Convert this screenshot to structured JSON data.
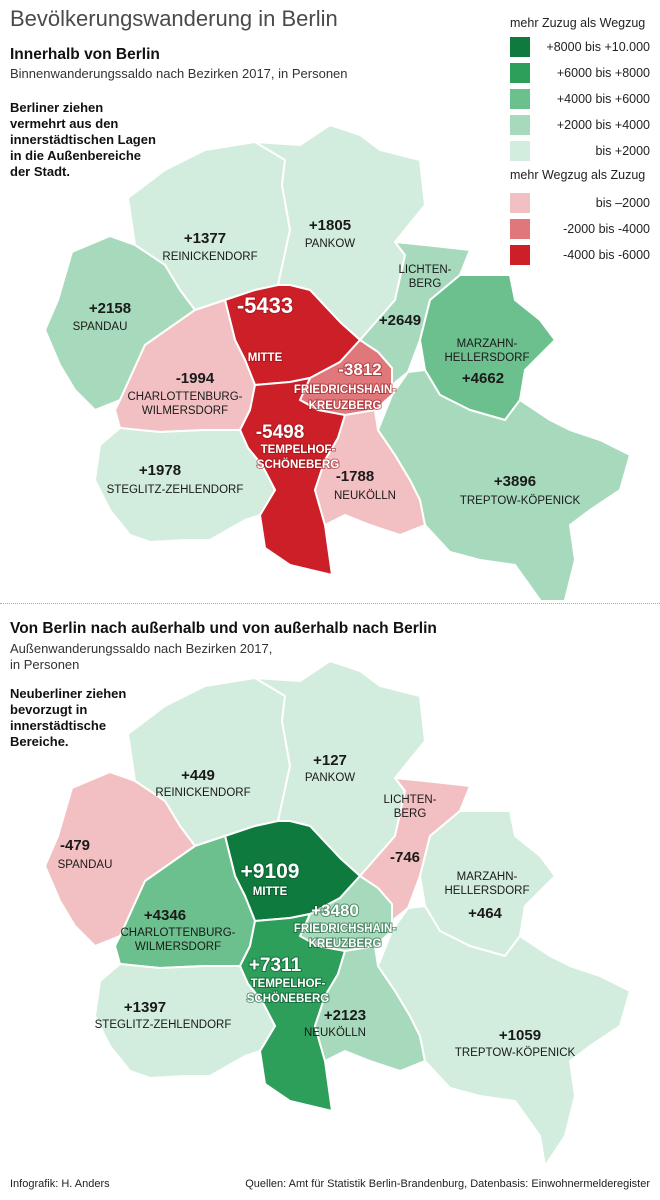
{
  "title": "Bevölkerungswanderung in Berlin",
  "colors": {
    "g5": "#0f7a3e",
    "g4": "#2e9e5b",
    "g3": "#6cc08d",
    "g2": "#a7d9bc",
    "g1": "#d2ecdd",
    "r1": "#f2c0c2",
    "r2": "#e0777b",
    "r3": "#cc1f27"
  },
  "legend": {
    "head_plus": "mehr Zuzug als Wegzug",
    "head_minus": "mehr Wegzug als Zuzug",
    "items": [
      {
        "label": "+8000 bis +10.000",
        "color": "#0f7a3e"
      },
      {
        "label": "+6000 bis +8000",
        "color": "#2e9e5b"
      },
      {
        "label": "+4000 bis +6000",
        "color": "#6cc08d"
      },
      {
        "label": "+2000 bis +4000",
        "color": "#a7d9bc"
      },
      {
        "label": "bis +2000",
        "color": "#d2ecdd"
      },
      {
        "label": "bis –2000",
        "color": "#f2c0c2"
      },
      {
        "label": "-2000 bis -4000",
        "color": "#e0777b"
      },
      {
        "label": "-4000 bis -6000",
        "color": "#cc1f27"
      }
    ]
  },
  "section1": {
    "title": "Innerhalb von Berlin",
    "subtitle": "Binnenwanderungssaldo nach Bezirken 2017, in Personen",
    "note": [
      "Berliner ziehen",
      "vermehrt aus den",
      "innerstädtischen Lagen",
      "in die Außenbereiche",
      "der Stadt."
    ]
  },
  "section2": {
    "title": "Von Berlin nach außerhalb und von außerhalb nach Berlin",
    "subtitle": [
      "Außenwanderungssaldo nach Bezirken 2017,",
      "in Personen"
    ],
    "note": [
      "Neuberliner ziehen",
      "bevorzugt in",
      "innerstädtische",
      "Bereiche."
    ]
  },
  "map1": [
    {
      "id": "reinickendorf",
      "name": "REINICKENDORF",
      "value": "+1377",
      "color": "#d2ecdd"
    },
    {
      "id": "pankow",
      "name": "PANKOW",
      "value": "+1805",
      "color": "#d2ecdd"
    },
    {
      "id": "spandau",
      "name": "SPANDAU",
      "value": "+2158",
      "color": "#a7d9bc"
    },
    {
      "id": "lichtenberg",
      "name": "LICHTEN-BERG",
      "value": "+2649",
      "color": "#a7d9bc"
    },
    {
      "id": "marzahn",
      "name": "MARZAHN-HELLERSDORF",
      "value": "+4662",
      "color": "#6cc08d"
    },
    {
      "id": "mitte",
      "name": "MITTE",
      "value": "-5433",
      "color": "#cc1f27"
    },
    {
      "id": "friedrichshain",
      "name": "FRIEDRICHSHAIN-KREUZBERG",
      "value": "-3812",
      "color": "#e0777b"
    },
    {
      "id": "charlottenburg",
      "name": "CHARLOTTENBURG-WILMERSDORF",
      "value": "-1994",
      "color": "#f2c0c2"
    },
    {
      "id": "tempelhof",
      "name": "TEMPELHOF-SCHÖNEBERG",
      "value": "-5498",
      "color": "#cc1f27"
    },
    {
      "id": "steglitz",
      "name": "STEGLITZ-ZEHLENDORF",
      "value": "+1978",
      "color": "#d2ecdd"
    },
    {
      "id": "neukoelln",
      "name": "NEUKÖLLN",
      "value": "-1788",
      "color": "#f2c0c2"
    },
    {
      "id": "treptow",
      "name": "TREPTOW-KÖPENICK",
      "value": "+3896",
      "color": "#a7d9bc"
    }
  ],
  "map2": [
    {
      "id": "reinickendorf",
      "name": "REINICKENDORF",
      "value": "+449",
      "color": "#d2ecdd"
    },
    {
      "id": "pankow",
      "name": "PANKOW",
      "value": "+127",
      "color": "#d2ecdd"
    },
    {
      "id": "spandau",
      "name": "SPANDAU",
      "value": "-479",
      "color": "#f2c0c2"
    },
    {
      "id": "lichtenberg",
      "name": "LICHTEN-BERG",
      "value": "-746",
      "color": "#f2c0c2"
    },
    {
      "id": "marzahn",
      "name": "MARZAHN-HELLERSDORF",
      "value": "+464",
      "color": "#d2ecdd"
    },
    {
      "id": "mitte",
      "name": "MITTE",
      "value": "+9109",
      "color": "#0f7a3e"
    },
    {
      "id": "friedrichshain",
      "name": "FRIEDRICHSHAIN-KREUZBERG",
      "value": "+3480",
      "color": "#a7d9bc"
    },
    {
      "id": "charlottenburg",
      "name": "CHARLOTTENBURG-WILMERSDORF",
      "value": "+4346",
      "color": "#6cc08d"
    },
    {
      "id": "tempelhof",
      "name": "TEMPELHOF-SCHÖNEBERG",
      "value": "+7311",
      "color": "#2e9e5b"
    },
    {
      "id": "steglitz",
      "name": "STEGLITZ-ZEHLENDORF",
      "value": "+1397",
      "color": "#d2ecdd"
    },
    {
      "id": "neukoelln",
      "name": "NEUKÖLLN",
      "value": "+2123",
      "color": "#a7d9bc"
    },
    {
      "id": "treptow",
      "name": "TREPTOW-KÖPENICK",
      "value": "+1059",
      "color": "#d2ecdd"
    }
  ],
  "footer": {
    "left": "Infografik: H. Anders",
    "right": "Quellen: Amt für Statistik Berlin-Brandenburg, Datenbasis: Einwohnermelderegister"
  }
}
